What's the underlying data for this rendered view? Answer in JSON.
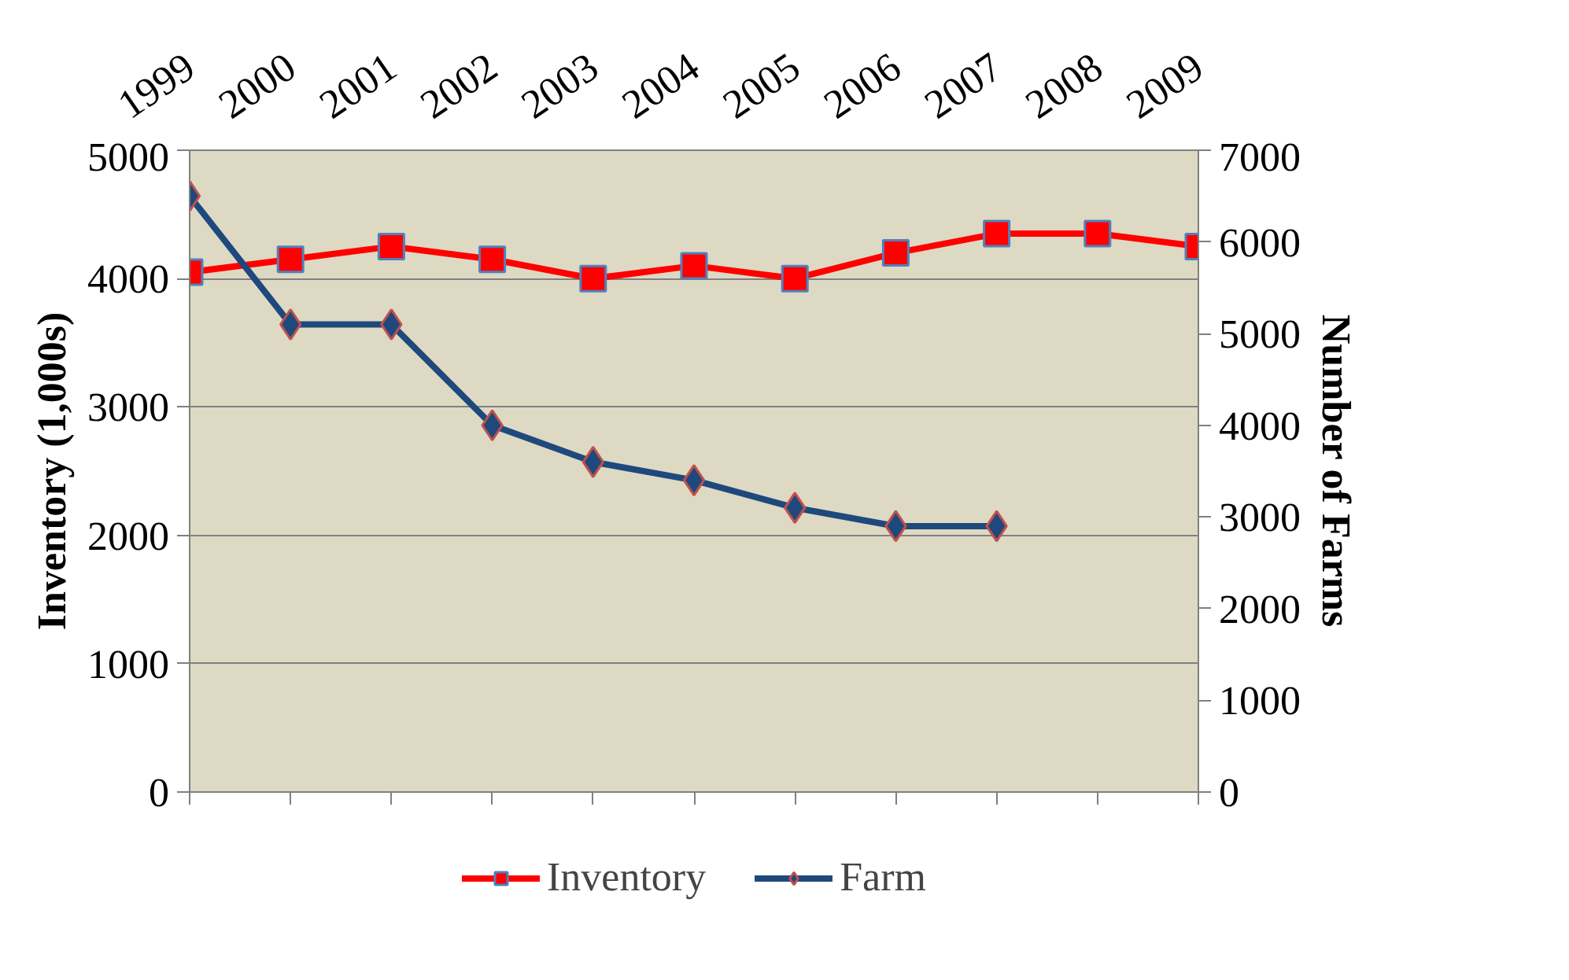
{
  "chart_data": {
    "type": "line",
    "categories": [
      "1999",
      "2000",
      "2001",
      "2002",
      "2003",
      "2004",
      "2005",
      "2006",
      "2007",
      "2008",
      "2009"
    ],
    "ylabel": "Inventory (1,000s)",
    "y2label": "Number of Farms",
    "series": [
      {
        "name": "Inventory",
        "color": "#ff0000",
        "marker": "square",
        "values": [
          4050,
          4150,
          4250,
          4150,
          4000,
          4100,
          4000,
          4200,
          4350,
          4350,
          4250
        ]
      },
      {
        "name": "Farm",
        "color": "#1f497d",
        "marker": "diamond",
        "axis": "y2",
        "values": [
          6500,
          5100,
          5100,
          4000,
          3600,
          3400,
          3100,
          2900,
          2900,
          null,
          null
        ]
      }
    ],
    "ylim": [
      0,
      5000
    ],
    "yticks": [
      0,
      1000,
      2000,
      3000,
      4000,
      5000
    ],
    "y2lim": [
      0,
      7000
    ],
    "y2ticks": [
      0,
      1000,
      2000,
      3000,
      4000,
      5000,
      6000,
      7000
    ],
    "grid": "y",
    "legend": "bottom"
  }
}
